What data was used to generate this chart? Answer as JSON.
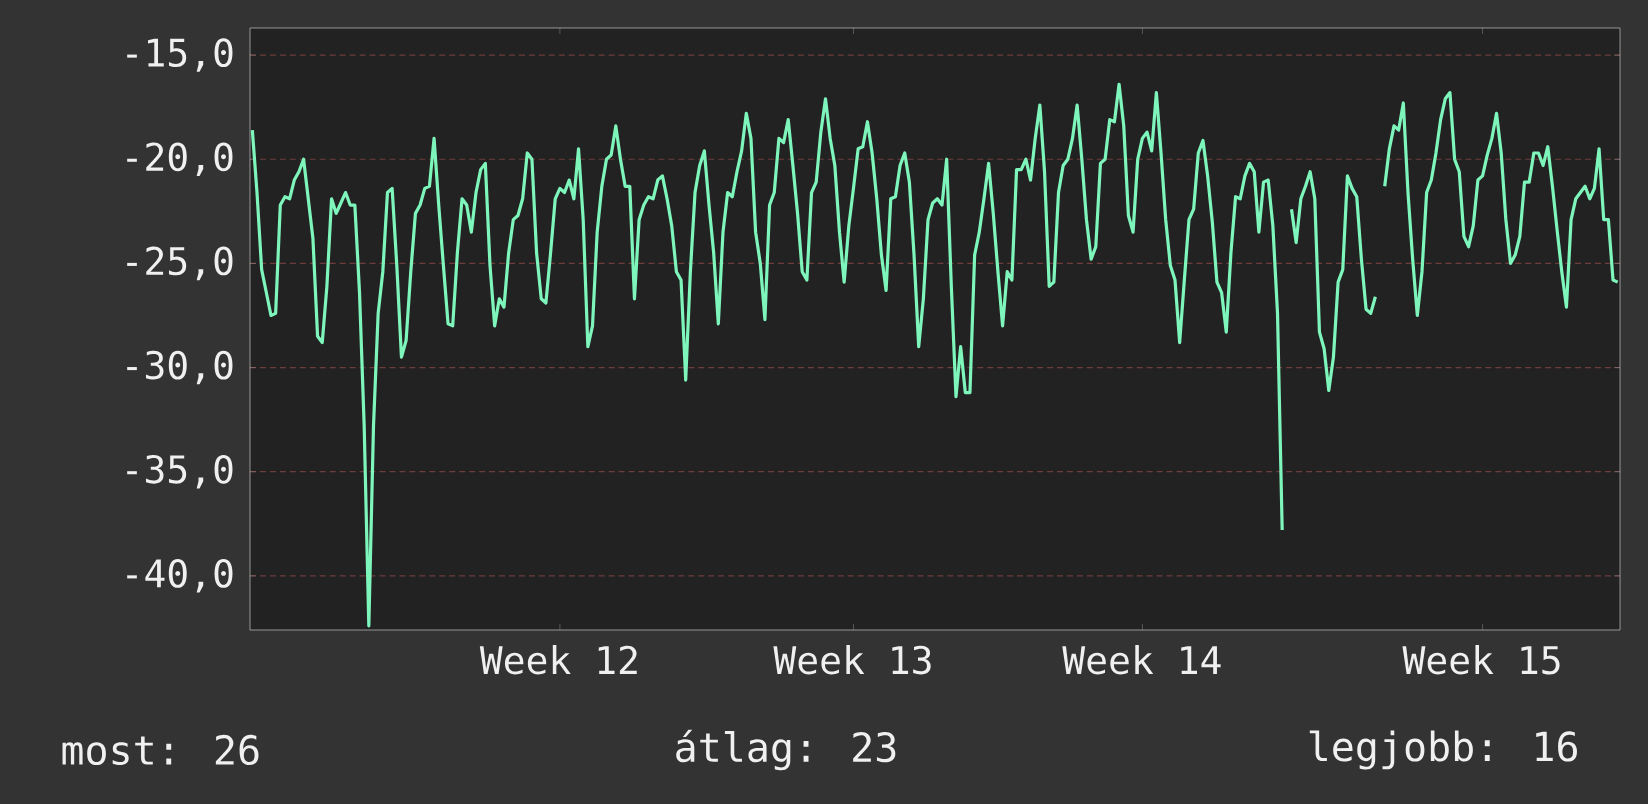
{
  "chart_data": {
    "type": "line",
    "color": "#7df5bb",
    "line_style": "solid",
    "grid": "y",
    "ylim": [
      -42.6,
      -13.7
    ],
    "categories": [
      null,
      null,
      null,
      null,
      null,
      null,
      null,
      null,
      null,
      null,
      null,
      null,
      null,
      null,
      null,
      null,
      null,
      null,
      null,
      null,
      null,
      null,
      null,
      null,
      null,
      null,
      null,
      null,
      null,
      null,
      null,
      null,
      null,
      null,
      null,
      null,
      null,
      null,
      null,
      null,
      null,
      null,
      null,
      null,
      null,
      null,
      null,
      null,
      null,
      null,
      null,
      null,
      null,
      null,
      null,
      null,
      null,
      null,
      null,
      null,
      null,
      null,
      null,
      null,
      null,
      null,
      "Week 12",
      null,
      null,
      null,
      null,
      null,
      null,
      null,
      null,
      null,
      null,
      null,
      null,
      null,
      null,
      null,
      null,
      null,
      null,
      null,
      null,
      null,
      null,
      null,
      null,
      null,
      null,
      null,
      null,
      null,
      null,
      null,
      null,
      null,
      null,
      null,
      null,
      null,
      null,
      null,
      null,
      null,
      null,
      null,
      null,
      null,
      null,
      null,
      null,
      null,
      null,
      null,
      null,
      null,
      null,
      null,
      null,
      null,
      null,
      null,
      null,
      null,
      null,
      "Week 13",
      null,
      null,
      null,
      null,
      null,
      null,
      null,
      null,
      null,
      null,
      null,
      null,
      null,
      null,
      null,
      null,
      null,
      null,
      null,
      null,
      null,
      null,
      null,
      null,
      null,
      null,
      null,
      null,
      null,
      null,
      null,
      null,
      null,
      null,
      null,
      null,
      null,
      null,
      null,
      null,
      null,
      null,
      null,
      null,
      null,
      null,
      null,
      null,
      null,
      null,
      null,
      null,
      null,
      null,
      null,
      null,
      null,
      null,
      null,
      null,
      null,
      "Week 14",
      null,
      null,
      null,
      null,
      null,
      null,
      null,
      null,
      null,
      null,
      null,
      null,
      null,
      null,
      null,
      null,
      null,
      null,
      null,
      null,
      null,
      null,
      null,
      null,
      null,
      null,
      null,
      null,
      null,
      null,
      null,
      null,
      null,
      null,
      null,
      null,
      null,
      null,
      null,
      null,
      null,
      null,
      null,
      null,
      null,
      null,
      null,
      null,
      null,
      null,
      null,
      null,
      null,
      null,
      null,
      null,
      null,
      null,
      null,
      null,
      null,
      null,
      null,
      null,
      null,
      null,
      null,
      null,
      null,
      null,
      null,
      null,
      "Week 15",
      null,
      null,
      null,
      null,
      null,
      null,
      null,
      null,
      null,
      null,
      null,
      null,
      null,
      null,
      null,
      null,
      null,
      null,
      null,
      null,
      null,
      null,
      null,
      null,
      null,
      null,
      null,
      null,
      null
    ],
    "yticks": [
      {
        "value": -15,
        "label": "-15,0"
      },
      {
        "value": -20,
        "label": "-20,0"
      },
      {
        "value": -25,
        "label": "-25,0"
      },
      {
        "value": -30,
        "label": "-30,0"
      },
      {
        "value": -35,
        "label": "-35,0"
      },
      {
        "value": -40,
        "label": "-40,0"
      }
    ],
    "annotations": [
      "most: 26",
      "átlag: 23",
      "legjobb: 16"
    ],
    "values": [
      -18.6,
      -21.6,
      -25.3,
      -26.4,
      -27.5,
      -27.4,
      -22.2,
      -21.8,
      -21.9,
      -21.0,
      -20.6,
      -20.0,
      -21.9,
      -23.8,
      -28.5,
      -28.8,
      -26.1,
      -21.9,
      -22.6,
      -22.1,
      -21.6,
      -22.2,
      -22.2,
      -26.4,
      -32.8,
      -42.4,
      -32.8,
      -27.4,
      -25.4,
      -21.6,
      -21.4,
      -25.1,
      -29.5,
      -28.7,
      -25.4,
      -22.6,
      -22.2,
      -21.4,
      -21.3,
      -19.0,
      -22.2,
      -25.1,
      -27.9,
      -28.0,
      -24.5,
      -21.9,
      -22.2,
      -23.5,
      -21.6,
      -20.5,
      -20.2,
      -25.1,
      -28.0,
      -26.7,
      -27.1,
      -24.5,
      -22.9,
      -22.7,
      -21.9,
      -19.7,
      -20.0,
      -24.5,
      -26.7,
      -26.9,
      -24.5,
      -21.9,
      -21.4,
      -21.6,
      -21.0,
      -21.9,
      -19.5,
      -22.9,
      -29.0,
      -28.0,
      -23.5,
      -21.3,
      -20.0,
      -19.8,
      -18.4,
      -20.0,
      -21.3,
      -21.3,
      -26.7,
      -22.9,
      -22.2,
      -21.8,
      -21.9,
      -21.0,
      -20.8,
      -21.9,
      -23.2,
      -25.4,
      -25.8,
      -30.6,
      -25.4,
      -21.6,
      -20.3,
      -19.6,
      -22.2,
      -24.5,
      -27.9,
      -23.5,
      -21.6,
      -21.8,
      -20.6,
      -19.6,
      -17.8,
      -19.0,
      -23.5,
      -25.0,
      -27.7,
      -22.2,
      -21.6,
      -19.0,
      -19.2,
      -18.1,
      -20.3,
      -22.6,
      -25.4,
      -25.8,
      -21.6,
      -21.1,
      -18.7,
      -17.1,
      -19.0,
      -20.3,
      -23.5,
      -25.9,
      -23.2,
      -21.4,
      -19.5,
      -19.4,
      -18.2,
      -19.7,
      -21.9,
      -24.6,
      -26.3,
      -21.9,
      -21.8,
      -20.3,
      -19.7,
      -21.1,
      -24.6,
      -29.0,
      -26.7,
      -22.9,
      -22.1,
      -21.9,
      -22.2,
      -20.0,
      -26.1,
      -31.4,
      -29.0,
      -31.2,
      -31.2,
      -24.6,
      -23.5,
      -21.9,
      -20.2,
      -22.6,
      -25.4,
      -28.0,
      -25.4,
      -25.8,
      -20.5,
      -20.5,
      -20.0,
      -21.0,
      -19.0,
      -17.4,
      -20.6,
      -26.1,
      -25.9,
      -21.6,
      -20.3,
      -20.0,
      -19.0,
      -17.4,
      -20.0,
      -22.9,
      -24.8,
      -24.2,
      -20.2,
      -20.0,
      -18.1,
      -18.2,
      -16.4,
      -18.4,
      -22.7,
      -23.5,
      -20.0,
      -19.0,
      -18.7,
      -19.6,
      -16.8,
      -19.7,
      -22.9,
      -25.1,
      -25.8,
      -28.8,
      -25.8,
      -22.9,
      -22.4,
      -19.7,
      -19.1,
      -20.8,
      -23.0,
      -25.9,
      -26.4,
      -28.3,
      -24.5,
      -21.8,
      -21.9,
      -20.8,
      -20.2,
      -20.6,
      -23.5,
      -21.1,
      -21.0,
      -23.2,
      -27.4,
      -37.8,
      null,
      -22.4,
      -24.0,
      -21.9,
      -21.3,
      -20.6,
      -21.9,
      -28.3,
      -29.1,
      -31.1,
      -29.5,
      -25.9,
      -25.3,
      -20.8,
      -21.4,
      -21.8,
      -24.8,
      -27.2,
      -27.4,
      -26.6,
      null,
      -21.3,
      -19.5,
      -18.4,
      -18.6,
      -17.3,
      -21.6,
      -24.8,
      -27.5,
      -25.4,
      -21.6,
      -21.0,
      -19.7,
      -18.1,
      -17.1,
      -16.8,
      -20.0,
      -20.6,
      -23.7,
      -24.2,
      -23.2,
      -21.0,
      -20.8,
      -19.8,
      -19.0,
      -17.8,
      -19.7,
      -22.9,
      -25.0,
      -24.6,
      -23.7,
      -21.1,
      -21.1,
      -19.7,
      -19.7,
      -20.3,
      -19.4,
      -21.3,
      -23.4,
      -25.4,
      -27.1,
      -22.9,
      -21.9,
      -21.6,
      -21.3,
      -21.9,
      -21.4,
      -19.5,
      -22.9,
      -22.9,
      -25.8,
      -25.9
    ]
  }
}
